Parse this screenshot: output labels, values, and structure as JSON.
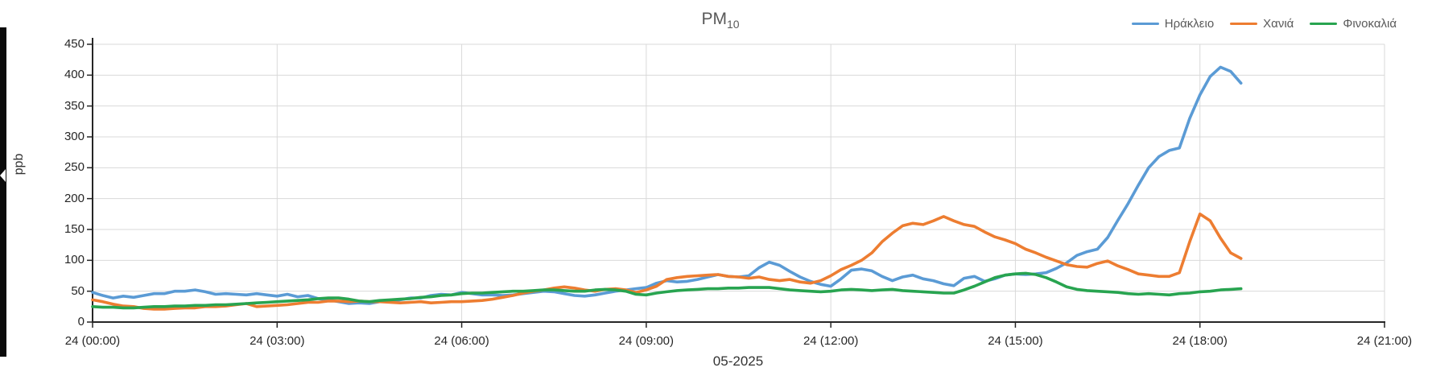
{
  "chart": {
    "title_main": "PM",
    "title_sub": "10",
    "y_axis_title": "ppb",
    "x_axis_title": "05-2025"
  },
  "colors": {
    "background": "#ffffff",
    "grid": "#D9D9D9",
    "axis": "#262626",
    "tick_text": "#262626",
    "title_text": "#595959",
    "legend_text": "#595959",
    "edge_strip": "#0b0b0b"
  },
  "chart_data": {
    "type": "line",
    "title": "PM10",
    "xlabel": "05-2025",
    "ylabel": "ppb",
    "ylim": [
      0,
      450
    ],
    "xlim_hours": [
      0,
      21
    ],
    "grid": true,
    "legend_position": "top-right",
    "y_ticks": [
      0,
      50,
      100,
      150,
      200,
      250,
      300,
      350,
      400,
      450
    ],
    "x_ticks_hours": [
      0,
      3,
      6,
      9,
      12,
      15,
      18,
      21
    ],
    "x_tick_labels": [
      "24 (00:00)",
      "24 (03:00)",
      "24 (06:00)",
      "24 (09:00)",
      "24 (12:00)",
      "24 (15:00)",
      "24 (18:00)",
      "24 (21:00)"
    ],
    "x_start_min": 0,
    "x_step_min": 10,
    "n_points": 113,
    "series": [
      {
        "name": "Ηράκλειο",
        "color": "#5B9BD5",
        "values": [
          48,
          43,
          39,
          42,
          40,
          43,
          46,
          46,
          50,
          50,
          52,
          49,
          45,
          46,
          45,
          44,
          46,
          44,
          42,
          45,
          41,
          43,
          38,
          36,
          33,
          30,
          31,
          30,
          33,
          34,
          36,
          39,
          39,
          43,
          45,
          44,
          48,
          46,
          44,
          44,
          43,
          44,
          46,
          48,
          50,
          49,
          46,
          43,
          42,
          44,
          47,
          50,
          52,
          54,
          56,
          63,
          67,
          65,
          66,
          69,
          73,
          77,
          74,
          73,
          75,
          88,
          97,
          92,
          82,
          73,
          66,
          61,
          58,
          70,
          84,
          86,
          83,
          74,
          67,
          73,
          76,
          70,
          67,
          62,
          59,
          71,
          74,
          66,
          70,
          76,
          78,
          77,
          78,
          80,
          87,
          96,
          108,
          114,
          118,
          137,
          165,
          192,
          222,
          250,
          268,
          278,
          282,
          330,
          368,
          398,
          413,
          406,
          387
        ]
      },
      {
        "name": "Χανιά",
        "color": "#ED7D31",
        "values": [
          36,
          33,
          29,
          26,
          25,
          22,
          21,
          21,
          22,
          23,
          23,
          25,
          25,
          26,
          28,
          30,
          25,
          26,
          27,
          28,
          30,
          32,
          32,
          34,
          34,
          33,
          34,
          33,
          33,
          32,
          31,
          32,
          33,
          31,
          32,
          33,
          33,
          34,
          35,
          37,
          40,
          43,
          47,
          50,
          52,
          55,
          57,
          55,
          52,
          50,
          53,
          54,
          52,
          48,
          52,
          58,
          69,
          72,
          74,
          75,
          76,
          77,
          74,
          73,
          71,
          73,
          69,
          67,
          69,
          65,
          63,
          67,
          75,
          85,
          92,
          100,
          112,
          130,
          144,
          156,
          160,
          158,
          164,
          171,
          164,
          158,
          155,
          146,
          138,
          133,
          127,
          118,
          112,
          105,
          99,
          93,
          90,
          89,
          95,
          99,
          91,
          85,
          78,
          76,
          74,
          74,
          80,
          130,
          175,
          164,
          136,
          112,
          103
        ]
      },
      {
        "name": "Φινοκαλιά",
        "color": "#28A450",
        "values": [
          25,
          24,
          24,
          23,
          23,
          24,
          25,
          25,
          26,
          26,
          27,
          27,
          28,
          28,
          29,
          30,
          31,
          32,
          33,
          34,
          35,
          36,
          38,
          39,
          39,
          37,
          34,
          33,
          35,
          36,
          37,
          38,
          40,
          41,
          43,
          44,
          46,
          47,
          47,
          48,
          49,
          50,
          50,
          51,
          52,
          52,
          51,
          50,
          50,
          52,
          53,
          52,
          50,
          45,
          44,
          47,
          49,
          51,
          52,
          53,
          54,
          54,
          55,
          55,
          56,
          56,
          56,
          54,
          52,
          51,
          50,
          49,
          50,
          52,
          53,
          52,
          51,
          52,
          53,
          51,
          50,
          49,
          48,
          47,
          47,
          52,
          58,
          65,
          72,
          76,
          78,
          79,
          77,
          72,
          65,
          57,
          53,
          51,
          50,
          49,
          48,
          46,
          45,
          46,
          45,
          44,
          46,
          47,
          49,
          50,
          52,
          53,
          54
        ]
      }
    ]
  }
}
